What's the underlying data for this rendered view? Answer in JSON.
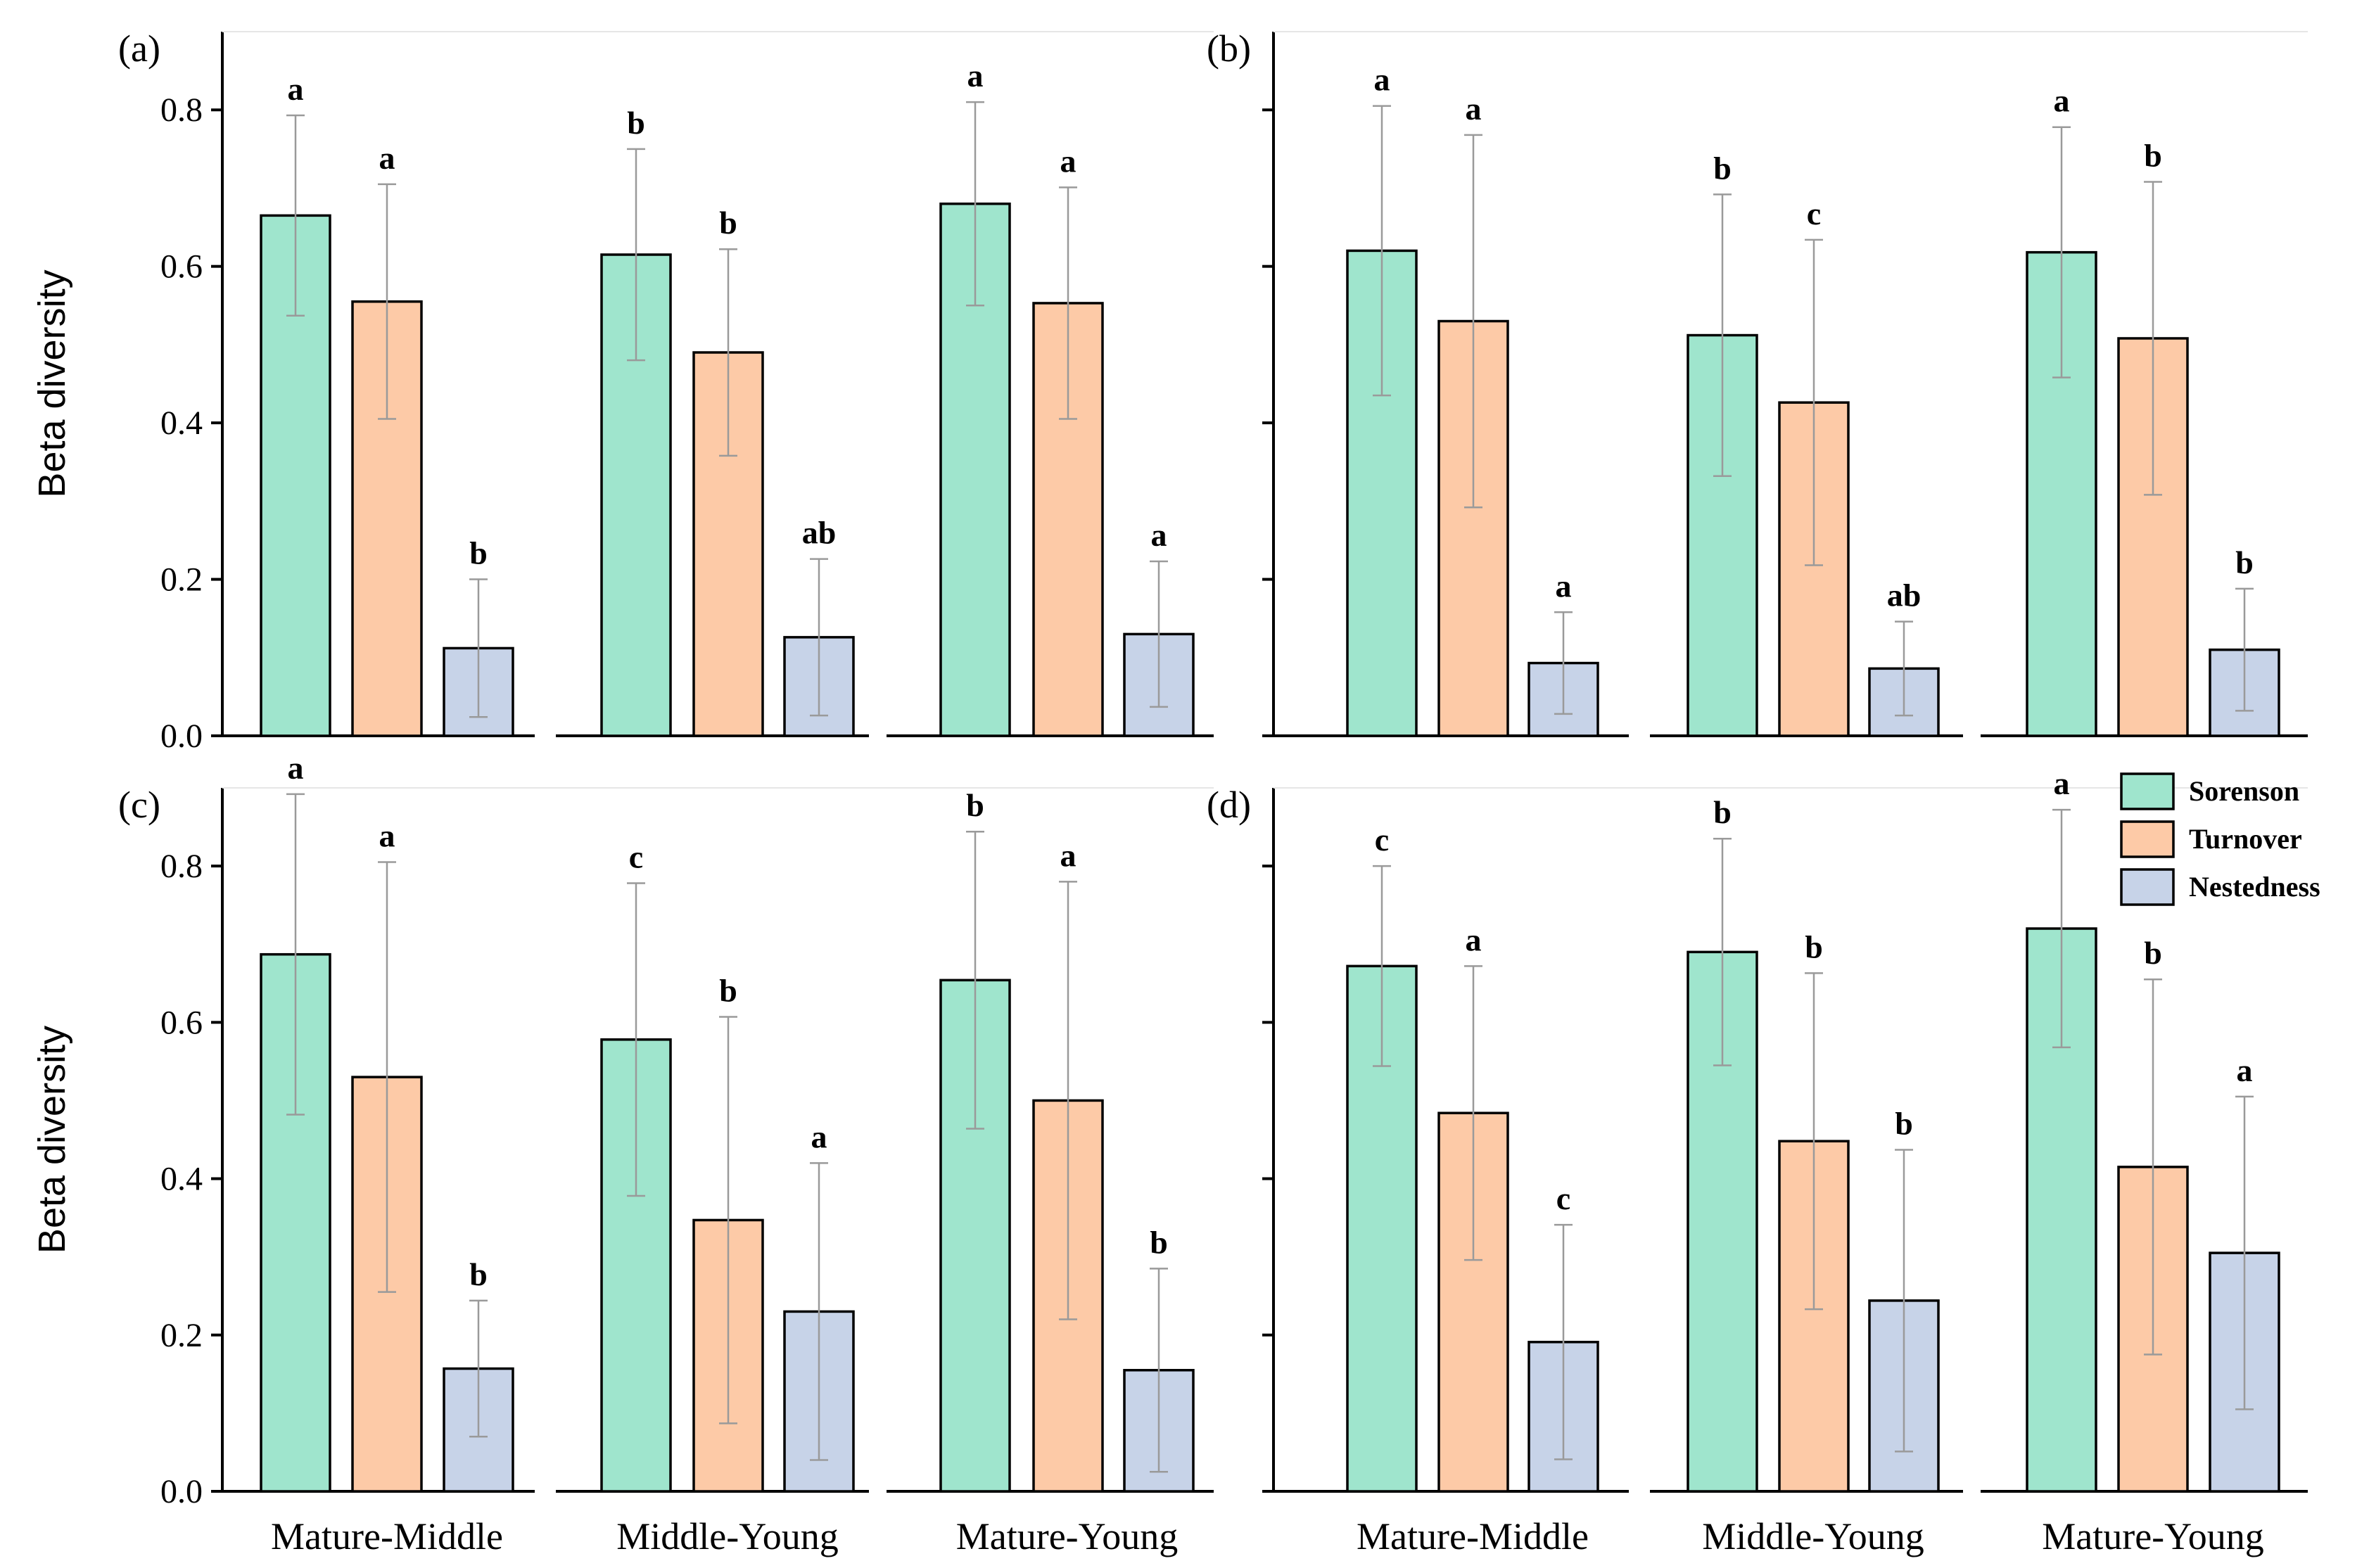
{
  "chart_data": [
    {
      "type": "bar",
      "panel_label": "(a)",
      "ylabel": "Beta diversity",
      "ylim": [
        0,
        0.9
      ],
      "yticks": [
        "0.0",
        "0.2",
        "0.4",
        "0.6",
        "0.8"
      ],
      "categories": [
        "Mature-Middle",
        "Middle-Young",
        "Mature-Young"
      ],
      "series": [
        {
          "name": "Sorenson",
          "values": [
            0.665,
            0.615,
            0.68
          ],
          "errors": [
            0.128,
            0.135,
            0.13
          ],
          "letters": [
            "a",
            "b",
            "a"
          ]
        },
        {
          "name": "Turnover",
          "values": [
            0.555,
            0.49,
            0.553
          ],
          "errors": [
            0.15,
            0.132,
            0.148
          ],
          "letters": [
            "a",
            "b",
            "a"
          ]
        },
        {
          "name": "Nestedness",
          "values": [
            0.112,
            0.126,
            0.13
          ],
          "errors": [
            0.088,
            0.1,
            0.093
          ],
          "letters": [
            "b",
            "ab",
            "a"
          ]
        }
      ]
    },
    {
      "type": "bar",
      "panel_label": "(b)",
      "ylabel": "",
      "ylim": [
        0,
        0.9
      ],
      "yticks": [
        "",
        "",
        "",
        "",
        ""
      ],
      "categories": [
        "Mature-Middle",
        "Middle-Young",
        "Mature-Young"
      ],
      "series": [
        {
          "name": "Sorenson",
          "values": [
            0.62,
            0.512,
            0.618
          ],
          "errors": [
            0.185,
            0.18,
            0.16
          ],
          "letters": [
            "a",
            "b",
            "a"
          ]
        },
        {
          "name": "Turnover",
          "values": [
            0.53,
            0.426,
            0.508
          ],
          "errors": [
            0.238,
            0.208,
            0.2
          ],
          "letters": [
            "a",
            "c",
            "b"
          ]
        },
        {
          "name": "Nestedness",
          "values": [
            0.093,
            0.086,
            0.11
          ],
          "errors": [
            0.065,
            0.06,
            0.078
          ],
          "letters": [
            "a",
            "ab",
            "b"
          ]
        }
      ]
    },
    {
      "type": "bar",
      "panel_label": "(c)",
      "ylabel": "Beta diversity",
      "ylim": [
        0,
        0.9
      ],
      "yticks": [
        "0.0",
        "0.2",
        "0.4",
        "0.6",
        "0.8"
      ],
      "categories": [
        "Mature-Middle",
        "Middle-Young",
        "Mature-Young"
      ],
      "series": [
        {
          "name": "Sorenson",
          "values": [
            0.687,
            0.578,
            0.654
          ],
          "errors": [
            0.205,
            0.2,
            0.19
          ],
          "letters": [
            "a",
            "c",
            "b"
          ]
        },
        {
          "name": "Turnover",
          "values": [
            0.53,
            0.347,
            0.5
          ],
          "errors": [
            0.275,
            0.26,
            0.28
          ],
          "letters": [
            "a",
            "b",
            "a"
          ]
        },
        {
          "name": "Nestedness",
          "values": [
            0.157,
            0.23,
            0.155
          ],
          "errors": [
            0.087,
            0.19,
            0.13
          ],
          "letters": [
            "b",
            "a",
            "b"
          ]
        }
      ]
    },
    {
      "type": "bar",
      "panel_label": "(d)",
      "ylabel": "",
      "ylim": [
        0,
        0.9
      ],
      "yticks": [
        "",
        "",
        "",
        "",
        ""
      ],
      "categories": [
        "Mature-Middle",
        "Middle-Young",
        "Mature-Young"
      ],
      "series": [
        {
          "name": "Sorenson",
          "values": [
            0.672,
            0.69,
            0.72
          ],
          "errors": [
            0.128,
            0.145,
            0.152
          ],
          "letters": [
            "c",
            "b",
            "a"
          ]
        },
        {
          "name": "Turnover",
          "values": [
            0.484,
            0.448,
            0.415
          ],
          "errors": [
            0.188,
            0.215,
            0.24
          ],
          "letters": [
            "a",
            "b",
            "b"
          ]
        },
        {
          "name": "Nestedness",
          "values": [
            0.191,
            0.244,
            0.305
          ],
          "errors": [
            0.15,
            0.193,
            0.2
          ],
          "letters": [
            "c",
            "b",
            "a"
          ]
        }
      ]
    }
  ],
  "legend": {
    "position": "top-right",
    "items": [
      "Sorenson",
      "Turnover",
      "Nestedness"
    ]
  },
  "colors": {
    "Sorenson": "#9fe5cd",
    "Turnover": "#fdcaa7",
    "Nestedness": "#c7d3e8",
    "error": "#9a9a9a",
    "axis": "#000000"
  }
}
